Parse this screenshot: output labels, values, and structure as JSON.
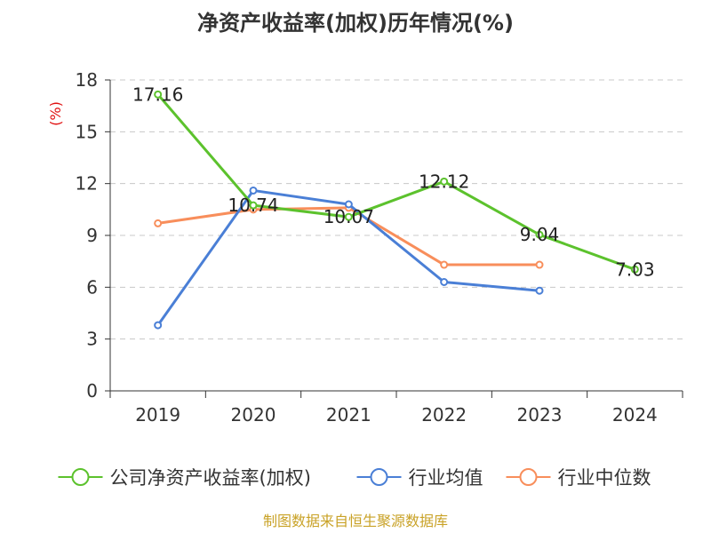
{
  "chart_data": {
    "type": "line",
    "title": "净资产收益率(加权)历年情况(%)",
    "ylabel": "(%)",
    "xlabel": "",
    "categories": [
      "2019",
      "2020",
      "2021",
      "2022",
      "2023",
      "2024"
    ],
    "ylim": [
      0,
      18
    ],
    "yticks": [
      0,
      3,
      6,
      9,
      12,
      15,
      18
    ],
    "grid": true,
    "legend_position": "bottom",
    "series": [
      {
        "name": "公司净资产收益率(加权)",
        "color": "#5cc22d",
        "values": [
          17.16,
          10.74,
          10.07,
          12.12,
          9.04,
          7.03
        ],
        "labels": [
          "17.16",
          "10.74",
          "10.07",
          "12.12",
          "9.04",
          "7.03"
        ]
      },
      {
        "name": "行业均值",
        "color": "#4a7fd6",
        "values": [
          3.8,
          11.6,
          10.8,
          6.3,
          5.8,
          null
        ]
      },
      {
        "name": "行业中位数",
        "color": "#f88e5b",
        "values": [
          9.7,
          10.5,
          10.6,
          7.3,
          7.3,
          null
        ]
      }
    ],
    "source": "制图数据来自恒生聚源数据库"
  }
}
